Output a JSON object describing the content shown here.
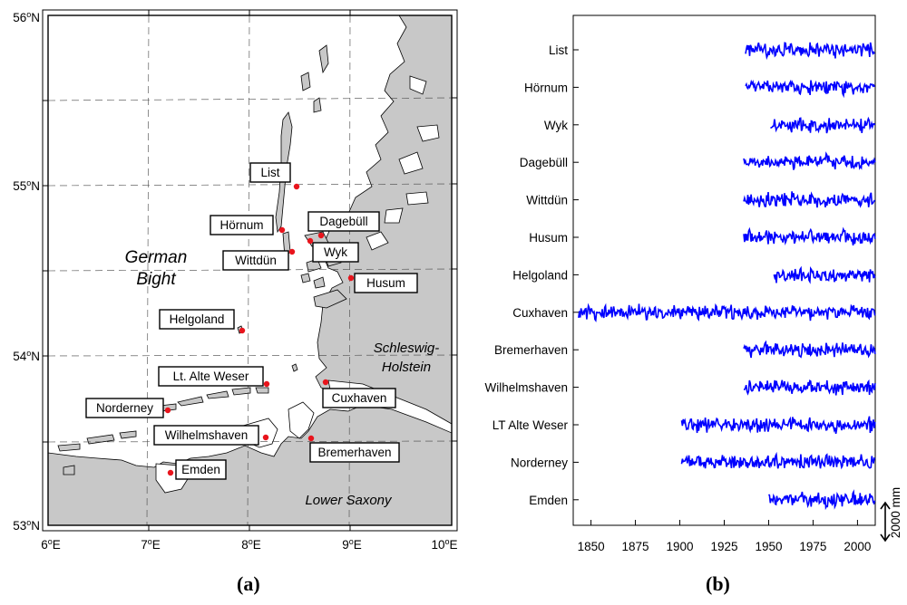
{
  "panel_a": {
    "caption": "(a)",
    "region_labels": {
      "german_bight_1": "German",
      "german_bight_2": "Bight",
      "sh_1": "Schleswig-",
      "sh_2": "Holstein",
      "lower_saxony": "Lower Saxony"
    },
    "lat_labels": {
      "lat56": {
        "deg": "56",
        "sup": "o",
        "hemi": "N"
      },
      "lat55": {
        "deg": "55",
        "sup": "o",
        "hemi": "N"
      },
      "lat54": {
        "deg": "54",
        "sup": "o",
        "hemi": "N"
      },
      "lat53": {
        "deg": "53",
        "sup": "o",
        "hemi": "N"
      }
    },
    "lon_labels": {
      "lon6": {
        "deg": "6",
        "sup": "o",
        "hemi": "E"
      },
      "lon7": {
        "deg": "7",
        "sup": "o",
        "hemi": "E"
      },
      "lon8": {
        "deg": "8",
        "sup": "o",
        "hemi": "E"
      },
      "lon9": {
        "deg": "9",
        "sup": "o",
        "hemi": "E"
      },
      "lon10": {
        "deg": "10",
        "sup": "o",
        "hemi": "E"
      }
    },
    "stations": [
      {
        "name": "List"
      },
      {
        "name": "Hörnum"
      },
      {
        "name": "Dagebüll"
      },
      {
        "name": "Wittdün"
      },
      {
        "name": "Wyk"
      },
      {
        "name": "Husum"
      },
      {
        "name": "Helgoland"
      },
      {
        "name": "Lt. Alte Weser"
      },
      {
        "name": "Cuxhaven"
      },
      {
        "name": "Norderney"
      },
      {
        "name": "Wilhelmshaven"
      },
      {
        "name": "Bremerhaven"
      },
      {
        "name": "Emden"
      }
    ],
    "colors": {
      "land": "#c8c8c8",
      "sea": "#ffffff",
      "marker": "#e8141c"
    }
  },
  "panel_b": {
    "caption": "(b)",
    "scale_label": "2000 mm",
    "chart_data": {
      "type": "line",
      "xlabel": "",
      "ylabel": "",
      "xlim": [
        1840,
        2010
      ],
      "xticks": [
        1850,
        1875,
        1900,
        1925,
        1950,
        1975,
        2000
      ],
      "xtick_labels": [
        "1850",
        "1875",
        "1900",
        "1925",
        "1950",
        "1975",
        "2000"
      ],
      "series_color": "#0000ff",
      "series": [
        {
          "name": "List",
          "start": 1937,
          "end": 2010
        },
        {
          "name": "Hörnum",
          "start": 1937,
          "end": 2010
        },
        {
          "name": "Wyk",
          "start": 1951,
          "end": 2010
        },
        {
          "name": "Dagebüll",
          "start": 1936,
          "end": 2010
        },
        {
          "name": "Wittdün",
          "start": 1936,
          "end": 2010
        },
        {
          "name": "Husum",
          "start": 1936,
          "end": 2010
        },
        {
          "name": "Helgoland",
          "start": 1953,
          "end": 2010
        },
        {
          "name": "Cuxhaven",
          "start": 1843,
          "end": 2010
        },
        {
          "name": "Bremerhaven",
          "start": 1936,
          "end": 2010
        },
        {
          "name": "Wilhelmshaven",
          "start": 1936,
          "end": 2010
        },
        {
          "name": "LT Alte Weser",
          "start": 1901,
          "end": 2010
        },
        {
          "name": "Norderney",
          "start": 1901,
          "end": 2010
        },
        {
          "name": "Emden",
          "start": 1950,
          "end": 2010
        }
      ]
    }
  }
}
